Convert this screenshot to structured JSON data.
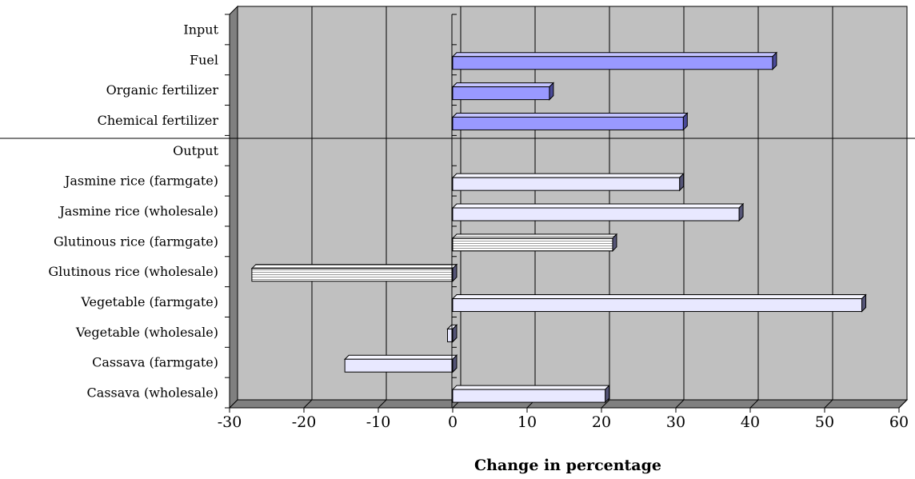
{
  "chart_data": {
    "type": "bar",
    "orientation": "horizontal",
    "categories": [
      "Input",
      "Fuel",
      "Organic fertilizer",
      "Chemical fertilizer",
      "Output",
      "Jasmine rice (farmgate)",
      "Jasmine rice (wholesale)",
      "Glutinous rice (farmgate)",
      "Glutinous rice (wholesale)",
      "Vegetable (farmgate)",
      "Vegetable (wholesale)",
      "Cassava (farmgate)",
      "Cassava (wholesale)"
    ],
    "values": [
      null,
      43,
      13,
      31,
      null,
      30.5,
      38.5,
      21.5,
      -27,
      55,
      -0.7,
      -14.5,
      20.5
    ],
    "groups": [
      "Input",
      "Input",
      "Input",
      "Input",
      "Output",
      "Output",
      "Output",
      "Output",
      "Output",
      "Output",
      "Output",
      "Output",
      "Output"
    ],
    "title": "",
    "xlabel": "Change in percentage",
    "ylabel": "",
    "xlim": [
      -30,
      60
    ],
    "xticks": [
      "-30",
      "-20",
      "-10",
      "0",
      "10",
      "20",
      "30",
      "40",
      "50",
      "60"
    ],
    "grid": true,
    "legend": "none",
    "colors": {
      "input_bar": "#9999ff",
      "output_bar": "#e8e8ff",
      "plot_bg": "#c0c0c0",
      "side_wall": "#808080",
      "gridline": "#000000"
    }
  }
}
